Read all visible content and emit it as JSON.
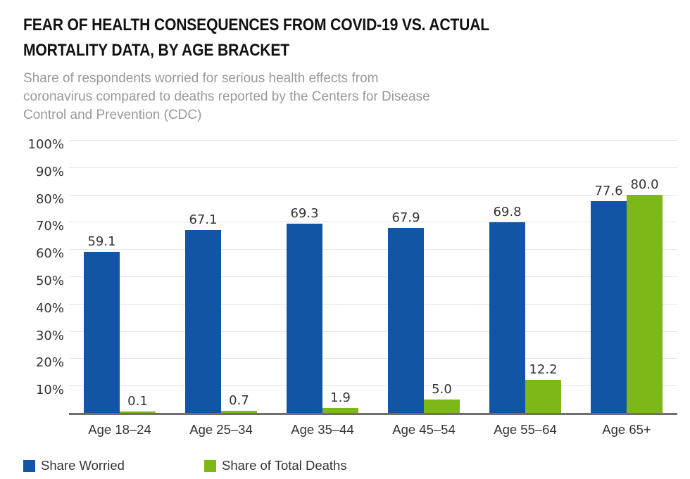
{
  "title": "FEAR OF HEALTH CONSEQUENCES FROM COVID-19 VS. ACTUAL\nMORTALITY DATA, BY AGE BRACKET",
  "subtitle": "Share of respondents worried for serious health effects from\ncoronavirus compared to deaths reported by the Centers for Disease\nControl and Prevention (CDC)",
  "colors": {
    "title_text": "#111111",
    "subtitle_text": "#98999b",
    "axis_text": "#333333",
    "gridline": "#e3e3e3",
    "baseline": "#6f6f6f",
    "series_blue": "#1155a4",
    "series_green": "#7cb817"
  },
  "chart_data": {
    "type": "bar",
    "title": "FEAR OF HEALTH CONSEQUENCES FROM COVID-19 VS. ACTUAL MORTALITY DATA, BY AGE BRACKET",
    "subtitle": "Share of respondents worried for serious health effects from coronavirus compared to deaths reported by the Centers for Disease Control and Prevention (CDC)",
    "categories": [
      "Age 18–24",
      "Age 25–34",
      "Age 35–44",
      "Age 45–54",
      "Age 55–64",
      "Age 65+"
    ],
    "series": [
      {
        "name": "Share Worried",
        "color": "#1155a4",
        "values": [
          59.1,
          67.1,
          69.3,
          67.9,
          69.8,
          77.6
        ],
        "labels": [
          "59.1",
          "67.1",
          "69.3",
          "67.9",
          "69.8",
          "77.6"
        ]
      },
      {
        "name": "Share of Total Deaths",
        "color": "#7cb817",
        "values": [
          0.1,
          0.7,
          1.9,
          5.0,
          12.2,
          80.0
        ],
        "labels": [
          "0.1",
          "0.7",
          "1.9",
          "5.0",
          "12.2",
          "80.0"
        ]
      }
    ],
    "xlabel": "",
    "ylabel": "",
    "ylim": [
      0,
      100
    ],
    "grid": true,
    "legend_position": "bottom",
    "yticks": [
      {
        "value": 100,
        "label": "100%"
      },
      {
        "value": 90,
        "label": "90%"
      },
      {
        "value": 80,
        "label": "80%"
      },
      {
        "value": 70,
        "label": "70%"
      },
      {
        "value": 60,
        "label": "60%"
      },
      {
        "value": 50,
        "label": "50%"
      },
      {
        "value": 40,
        "label": "40%"
      },
      {
        "value": 30,
        "label": "30%"
      },
      {
        "value": 20,
        "label": "20%"
      },
      {
        "value": 10,
        "label": "10%"
      }
    ]
  }
}
